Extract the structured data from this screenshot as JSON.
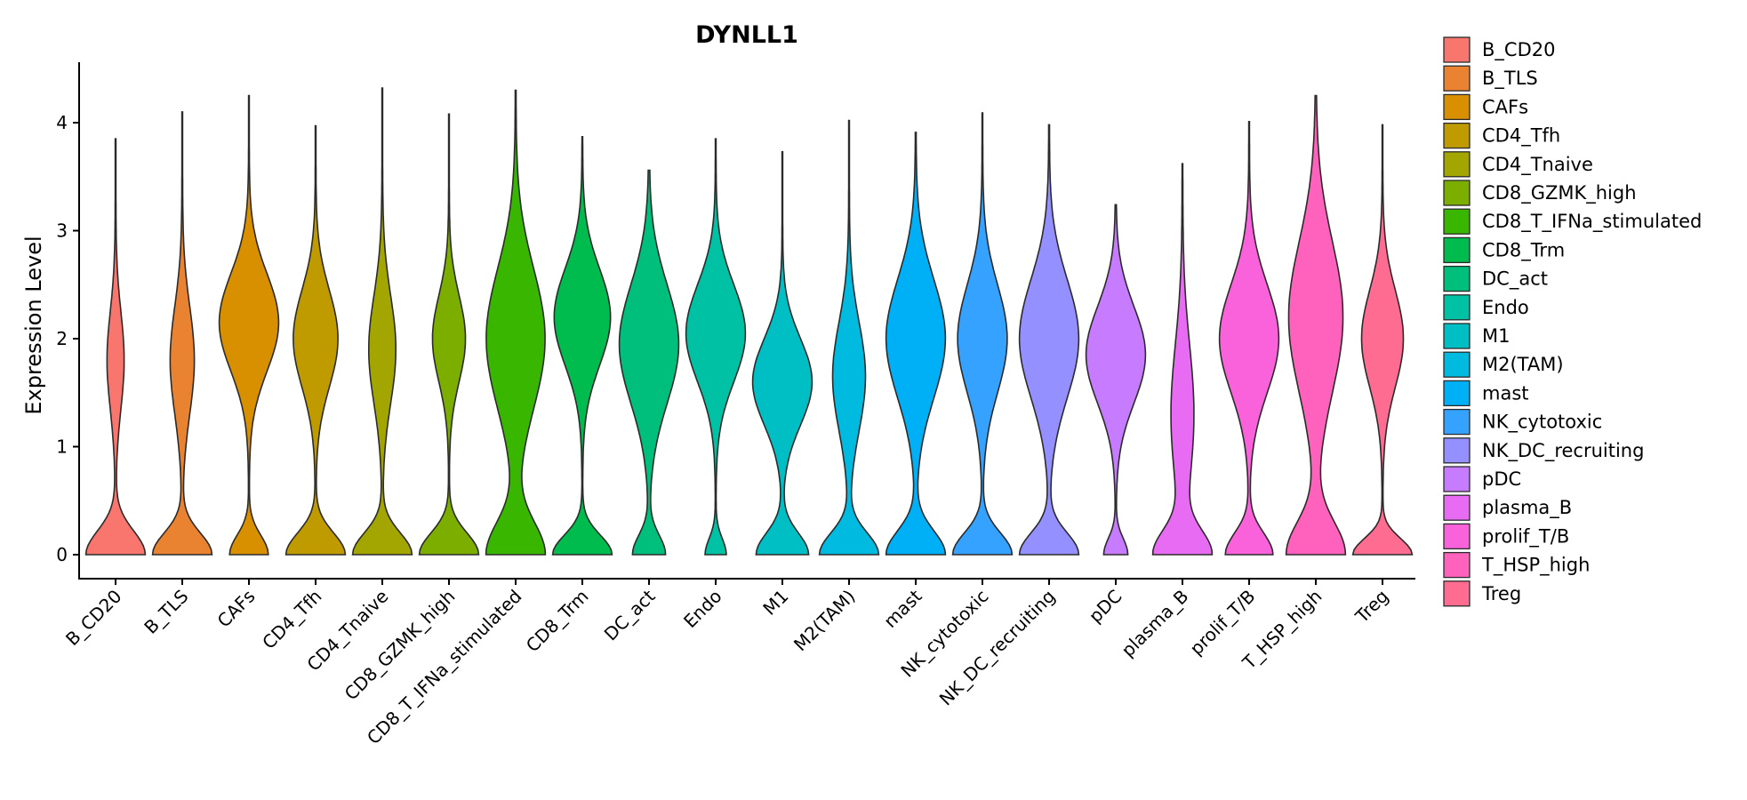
{
  "chart_data": {
    "type": "violin",
    "title": "DYNLL1",
    "xlabel": "",
    "ylabel": "Expression Level",
    "ylim": [
      -0.2,
      4.55
    ],
    "yticks": [
      0,
      1,
      2,
      3,
      4
    ],
    "grid": false,
    "legend_position": "right",
    "categories": [
      "B_CD20",
      "B_TLS",
      "CAFs",
      "CD4_Tfh",
      "CD4_Tnaive",
      "CD8_GZMK_high",
      "CD8_T_IFNa_stimulated",
      "CD8_Trm",
      "DC_act",
      "Endo",
      "M1",
      "M2(TAM)",
      "mast",
      "NK_cytotoxic",
      "NK_DC_recruiting",
      "pDC",
      "plasma_B",
      "prolif_T/B",
      "T_HSP_high",
      "Treg"
    ],
    "colors": [
      "#F8766D",
      "#EA8331",
      "#D89000",
      "#C09B00",
      "#A3A500",
      "#7CAE00",
      "#39B600",
      "#00BB4E",
      "#00BF7D",
      "#00C1A3",
      "#00BFC4",
      "#00BAE0",
      "#00B0F6",
      "#35A2FF",
      "#9590FF",
      "#C77CFF",
      "#E76BF3",
      "#FA62DB",
      "#FF62BC",
      "#FF6C91"
    ],
    "y_max": [
      3.85,
      4.1,
      4.25,
      3.97,
      4.32,
      4.08,
      4.3,
      3.87,
      3.56,
      3.85,
      3.73,
      4.02,
      3.91,
      4.09,
      3.98,
      3.24,
      3.62,
      4.01,
      4.25,
      3.98
    ],
    "density_modes": [
      [
        [
          0.0,
          1.0,
          0.22
        ],
        [
          1.8,
          0.28,
          0.45
        ]
      ],
      [
        [
          0.0,
          1.0,
          0.2
        ],
        [
          1.8,
          0.4,
          0.5
        ]
      ],
      [
        [
          0.0,
          0.55,
          0.18
        ],
        [
          2.15,
          0.85,
          0.45
        ]
      ],
      [
        [
          0.0,
          1.0,
          0.2
        ],
        [
          2.0,
          0.75,
          0.45
        ]
      ],
      [
        [
          0.0,
          1.0,
          0.2
        ],
        [
          1.9,
          0.45,
          0.5
        ]
      ],
      [
        [
          0.0,
          1.0,
          0.2
        ],
        [
          2.0,
          0.55,
          0.4
        ]
      ],
      [
        [
          0.0,
          1.0,
          0.3
        ],
        [
          2.0,
          1.0,
          0.65
        ]
      ],
      [
        [
          0.0,
          0.95,
          0.18
        ],
        [
          2.2,
          0.9,
          0.45
        ]
      ],
      [
        [
          0.0,
          0.55,
          0.18
        ],
        [
          1.95,
          1.0,
          0.55
        ]
      ],
      [
        [
          0.0,
          0.35,
          0.15
        ],
        [
          2.05,
          1.0,
          0.45
        ]
      ],
      [
        [
          0.0,
          0.75,
          0.2
        ],
        [
          1.6,
          0.85,
          0.4
        ]
      ],
      [
        [
          0.0,
          1.0,
          0.2
        ],
        [
          1.65,
          0.55,
          0.5
        ]
      ],
      [
        [
          0.0,
          1.0,
          0.22
        ],
        [
          2.0,
          1.0,
          0.55
        ]
      ],
      [
        [
          0.0,
          0.9,
          0.2
        ],
        [
          2.0,
          0.75,
          0.5
        ]
      ],
      [
        [
          0.0,
          0.9,
          0.2
        ],
        [
          2.0,
          0.9,
          0.55
        ]
      ],
      [
        [
          0.0,
          0.4,
          0.15
        ],
        [
          1.85,
          1.0,
          0.45
        ]
      ],
      [
        [
          0.0,
          1.0,
          0.22
        ],
        [
          1.3,
          0.4,
          0.65
        ]
      ],
      [
        [
          0.0,
          0.8,
          0.2
        ],
        [
          2.0,
          1.0,
          0.5
        ]
      ],
      [
        [
          0.0,
          1.0,
          0.3
        ],
        [
          2.2,
          0.92,
          0.7
        ]
      ],
      [
        [
          0.0,
          1.0,
          0.15
        ],
        [
          2.0,
          0.7,
          0.45
        ]
      ]
    ]
  }
}
